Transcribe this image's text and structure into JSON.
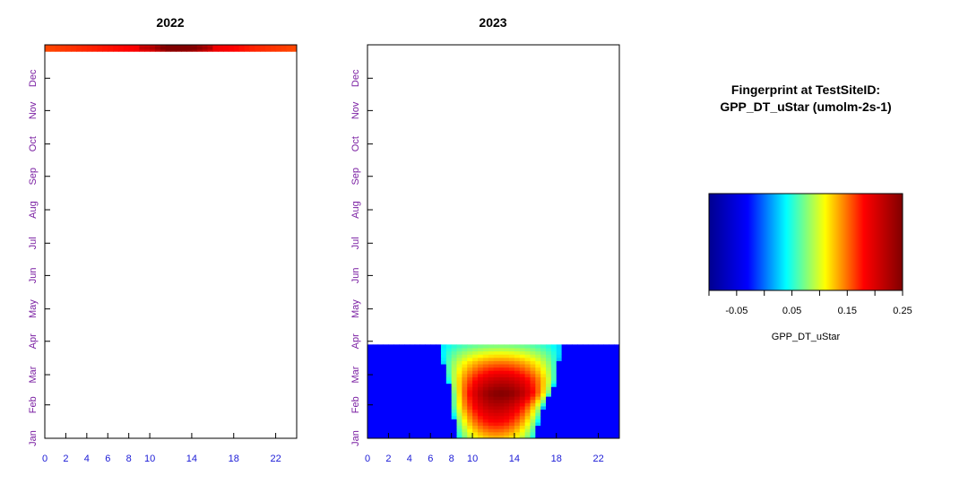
{
  "chart_data": [
    {
      "type": "heatmap",
      "title": "2022",
      "x_ticks": [
        "0",
        "2",
        "4",
        "6",
        "8",
        "10",
        "14",
        "18",
        "22"
      ],
      "y_ticks": [
        "Jan",
        "Feb",
        "Mar",
        "Apr",
        "May",
        "Jun",
        "Jul",
        "Aug",
        "Sep",
        "Oct",
        "Nov",
        "Dec"
      ],
      "xlim": [
        0,
        24
      ],
      "ylim": [
        "Jan 1",
        "Dec 31"
      ],
      "colorscale": "GPP_DT_uStar",
      "data_extent": {
        "from": "2022-12-26",
        "to": "2022-12-31"
      },
      "profile": [
        {
          "hour": 0,
          "value": 0.16
        },
        {
          "hour": 4,
          "value": 0.17
        },
        {
          "hour": 8,
          "value": 0.18
        },
        {
          "hour": 10,
          "value": 0.19
        },
        {
          "hour": 12,
          "value": 0.24
        },
        {
          "hour": 14,
          "value": 0.23
        },
        {
          "hour": 16,
          "value": 0.19
        },
        {
          "hour": 20,
          "value": 0.17
        },
        {
          "hour": 24,
          "value": 0.16
        }
      ]
    },
    {
      "type": "heatmap",
      "title": "2023",
      "x_ticks": [
        "0",
        "2",
        "4",
        "6",
        "8",
        "10",
        "14",
        "18",
        "22"
      ],
      "y_ticks": [
        "Jan",
        "Feb",
        "Mar",
        "Apr",
        "May",
        "Jun",
        "Jul",
        "Aug",
        "Sep",
        "Oct",
        "Nov",
        "Dec"
      ],
      "xlim": [
        0,
        24
      ],
      "ylim": [
        "Jan 1",
        "Dec 31"
      ],
      "colorscale": "GPP_DT_uStar",
      "data_extent": {
        "from": "2023-01-01",
        "to": "2023-03-28"
      },
      "background_value": -0.03,
      "daylight": [
        {
          "day": 1,
          "start": 8.5,
          "end": 16.0,
          "peak": 0.13
        },
        {
          "day": 15,
          "start": 8.3,
          "end": 16.3,
          "peak": 0.18
        },
        {
          "day": 30,
          "start": 8.0,
          "end": 16.8,
          "peak": 0.22
        },
        {
          "day": 42,
          "start": 8.0,
          "end": 17.5,
          "peak": 0.25
        },
        {
          "day": 55,
          "start": 7.6,
          "end": 18.0,
          "peak": 0.21
        },
        {
          "day": 70,
          "start": 7.2,
          "end": 18.2,
          "peak": 0.15
        },
        {
          "day": 87,
          "start": 6.8,
          "end": 18.5,
          "peak": 0.07
        }
      ]
    }
  ],
  "legend": {
    "title_line1": "Fingerprint at TestSiteID:",
    "title_line2": "GPP_DT_uStar (umolm-2s-1)",
    "label": "GPP_DT_uStar",
    "range": [
      -0.1,
      0.25
    ],
    "ticks": [
      "-0.05",
      "0.05",
      "0.15",
      "0.25"
    ],
    "tick_values": [
      -0.05,
      0.05,
      0.15,
      0.25
    ],
    "colors": [
      "#00008f",
      "#0000ff",
      "#00ffff",
      "#ffff00",
      "#ff0000",
      "#800000"
    ]
  }
}
